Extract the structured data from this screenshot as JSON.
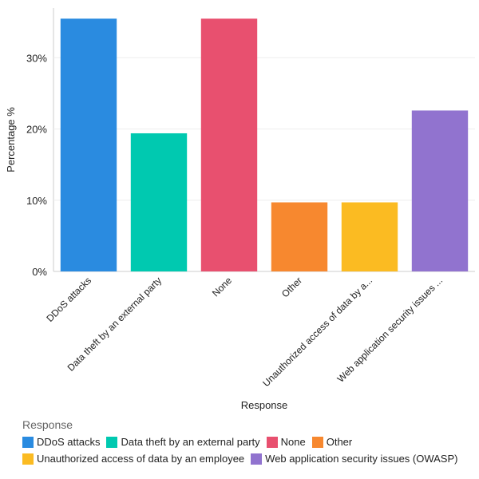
{
  "chart_data": {
    "type": "bar",
    "xlabel": "Response",
    "ylabel": "Percentage %",
    "ylim": [
      0,
      37
    ],
    "yticks": [
      0,
      10,
      20,
      30
    ],
    "ytick_labels": [
      "0%",
      "10%",
      "20%",
      "30%"
    ],
    "grid": true,
    "categories": [
      "DDoS attacks",
      "Data theft by an external party",
      "None",
      "Other",
      "Unauthorized access of data by a...",
      "Web application security issues ..."
    ],
    "values": [
      35.5,
      19.4,
      35.5,
      9.7,
      9.7,
      22.6
    ],
    "colors": [
      "#2a8be0",
      "#00c9b0",
      "#e8506f",
      "#f7882f",
      "#fbbb22",
      "#9173cf"
    ],
    "legend": {
      "title": "Response",
      "placement": "bottom",
      "entries": [
        "DDoS attacks",
        "Data theft by an external party",
        "None",
        "Other",
        "Unauthorized access of data by an employee",
        "Web application security issues (OWASP)"
      ]
    }
  }
}
